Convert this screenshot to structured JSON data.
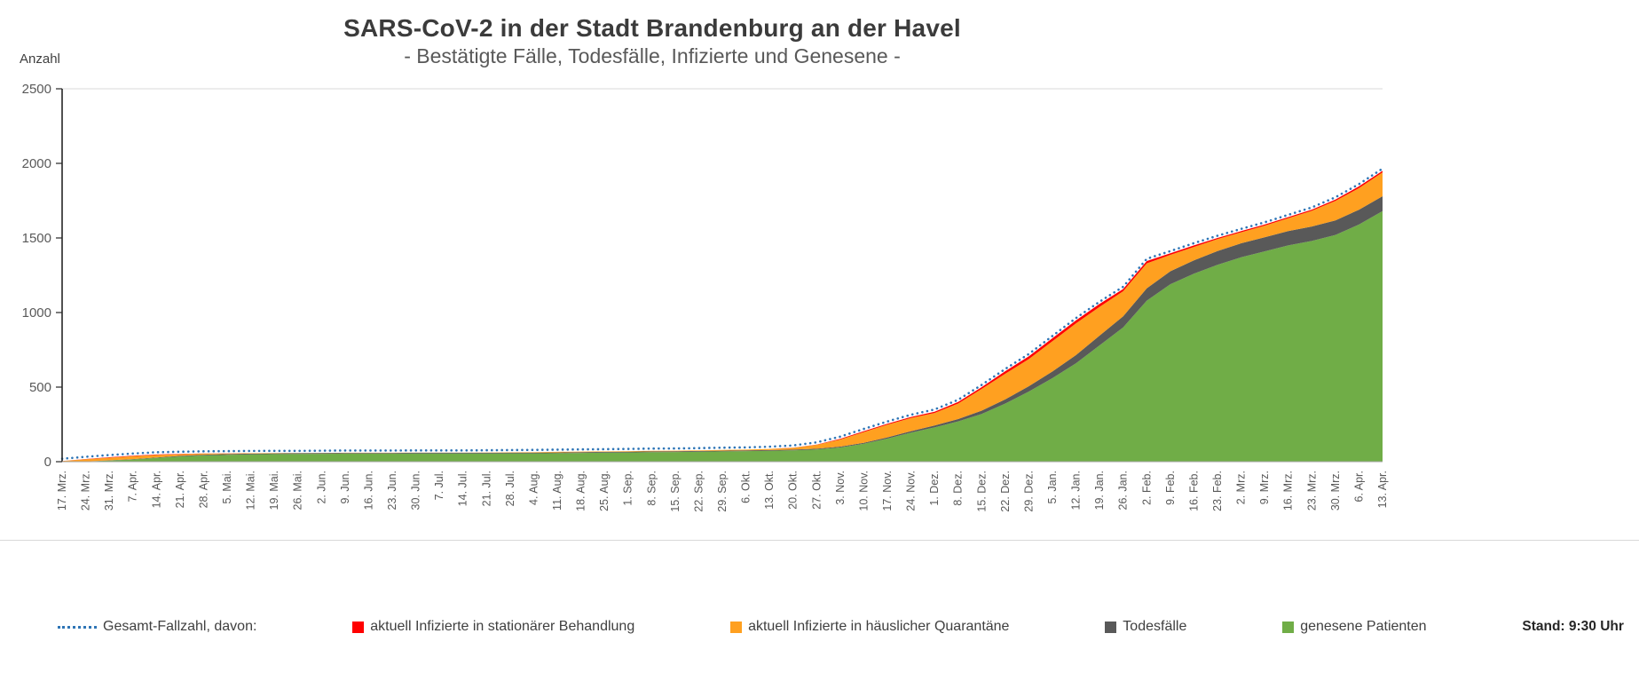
{
  "header": {
    "title": "SARS-CoV-2 in der Stadt Brandenburg an der Havel",
    "subtitle": "- Bestätigte Fälle, Todesfälle, Infizierte und Genesene -"
  },
  "axes": {
    "y_label": "Anzahl",
    "y_ticks": [
      0,
      500,
      1000,
      1500,
      2000,
      2500
    ],
    "y_max": 2500
  },
  "status": {
    "stand": "Stand: 9:30 Uhr"
  },
  "legend": [
    {
      "label": "Gesamt-Fallzahl, davon:",
      "swatch": "dotted-line",
      "color": "#2E75B6"
    },
    {
      "label": "aktuell Infizierte in stationärer Behandlung",
      "swatch": "square",
      "color": "#FF0000"
    },
    {
      "label": "aktuell Infizierte in häuslicher Quarantäne",
      "swatch": "square",
      "color": "#FFA020"
    },
    {
      "label": "Todesfälle",
      "swatch": "square",
      "color": "#595959"
    },
    {
      "label": "genesene Patienten",
      "swatch": "square",
      "color": "#70AD47"
    }
  ],
  "chart_data": {
    "type": "area",
    "stacking": "stacked",
    "grid": "top-border-only",
    "legend_position": "bottom",
    "ylim": [
      0,
      2500
    ],
    "categories": [
      "17. Mrz.",
      "24. Mrz.",
      "31. Mrz.",
      "7. Apr.",
      "14. Apr.",
      "21. Apr.",
      "28. Apr.",
      "5. Mai.",
      "12. Mai.",
      "19. Mai.",
      "26. Mai.",
      "2. Jun.",
      "9. Jun.",
      "16. Jun.",
      "23. Jun.",
      "30. Jun.",
      "7. Jul.",
      "14. Jul.",
      "21. Jul.",
      "28. Jul.",
      "4. Aug.",
      "11. Aug.",
      "18. Aug.",
      "25. Aug.",
      "1. Sep.",
      "8. Sep.",
      "15. Sep.",
      "22. Sep.",
      "29. Sep.",
      "6. Okt.",
      "13. Okt.",
      "20. Okt.",
      "27. Okt.",
      "3. Nov.",
      "10. Nov.",
      "17. Nov.",
      "24. Nov.",
      "1. Dez.",
      "8. Dez.",
      "15. Dez.",
      "22. Dez.",
      "29. Dez.",
      "5. Jan.",
      "12. Jan.",
      "19. Jan.",
      "26. Jan.",
      "2. Feb.",
      "9. Feb.",
      "16. Feb.",
      "23. Feb.",
      "2. Mrz.",
      "9. Mrz.",
      "16. Mrz.",
      "23. Mrz.",
      "30. Mrz.",
      "6. Apr.",
      "13. Apr."
    ],
    "series": [
      {
        "name": "genesene Patienten",
        "color": "#70AD47",
        "values": [
          0,
          2,
          8,
          15,
          25,
          35,
          42,
          46,
          49,
          51,
          52,
          53,
          54,
          54,
          54,
          55,
          55,
          55,
          55,
          56,
          56,
          57,
          59,
          61,
          62,
          64,
          65,
          67,
          69,
          71,
          73,
          76,
          82,
          95,
          120,
          155,
          195,
          230,
          270,
          320,
          390,
          470,
          560,
          660,
          780,
          900,
          1080,
          1190,
          1260,
          1320,
          1370,
          1410,
          1450,
          1480,
          1520,
          1590,
          1680
        ]
      },
      {
        "name": "Todesfälle",
        "color": "#595959",
        "values": [
          0,
          0,
          1,
          2,
          3,
          4,
          5,
          5,
          5,
          5,
          5,
          5,
          5,
          5,
          5,
          5,
          5,
          5,
          5,
          5,
          5,
          5,
          5,
          5,
          5,
          5,
          5,
          5,
          5,
          5,
          5,
          5,
          5,
          6,
          7,
          8,
          10,
          12,
          16,
          22,
          28,
          36,
          45,
          55,
          65,
          75,
          82,
          87,
          90,
          92,
          94,
          95,
          96,
          97,
          98,
          99,
          100
        ]
      },
      {
        "name": "aktuell Infizierte in häuslicher Quarantäne",
        "color": "#FFA020",
        "values": [
          5,
          14,
          18,
          20,
          17,
          11,
          7,
          4,
          3,
          2,
          1,
          1,
          1,
          1,
          1,
          1,
          1,
          1,
          2,
          2,
          3,
          4,
          4,
          3,
          4,
          4,
          4,
          4,
          5,
          5,
          8,
          12,
          26,
          48,
          72,
          85,
          88,
          85,
          104,
          146,
          172,
          182,
          203,
          213,
          193,
          168,
          168,
          110,
          90,
          80,
          74,
          78,
          86,
          105,
          130,
          145,
          160
        ]
      },
      {
        "name": "aktuell Infizierte in stationärer Behandlung",
        "color": "#FF0000",
        "values": [
          0,
          2,
          3,
          3,
          3,
          2,
          1,
          1,
          0,
          0,
          0,
          0,
          0,
          0,
          0,
          0,
          0,
          0,
          0,
          0,
          0,
          0,
          0,
          0,
          0,
          0,
          0,
          0,
          0,
          0,
          0,
          1,
          2,
          4,
          6,
          7,
          7,
          8,
          10,
          12,
          17,
          19,
          20,
          20,
          20,
          15,
          15,
          10,
          10,
          8,
          8,
          7,
          8,
          8,
          10,
          12,
          10
        ]
      }
    ],
    "total_line": {
      "name": "Gesamt-Fallzahl, davon:",
      "color": "#2E75B6",
      "style": "dotted",
      "values": [
        5,
        18,
        30,
        40,
        48,
        52,
        55,
        56,
        57,
        58,
        58,
        59,
        60,
        60,
        60,
        61,
        61,
        61,
        62,
        63,
        64,
        66,
        68,
        69,
        71,
        73,
        74,
        76,
        79,
        81,
        86,
        94,
        115,
        153,
        205,
        255,
        300,
        335,
        400,
        500,
        607,
        707,
        828,
        948,
        1058,
        1158,
        1345,
        1397,
        1450,
        1500,
        1546,
        1590,
        1640,
        1690,
        1758,
        1846,
        1950
      ]
    }
  }
}
